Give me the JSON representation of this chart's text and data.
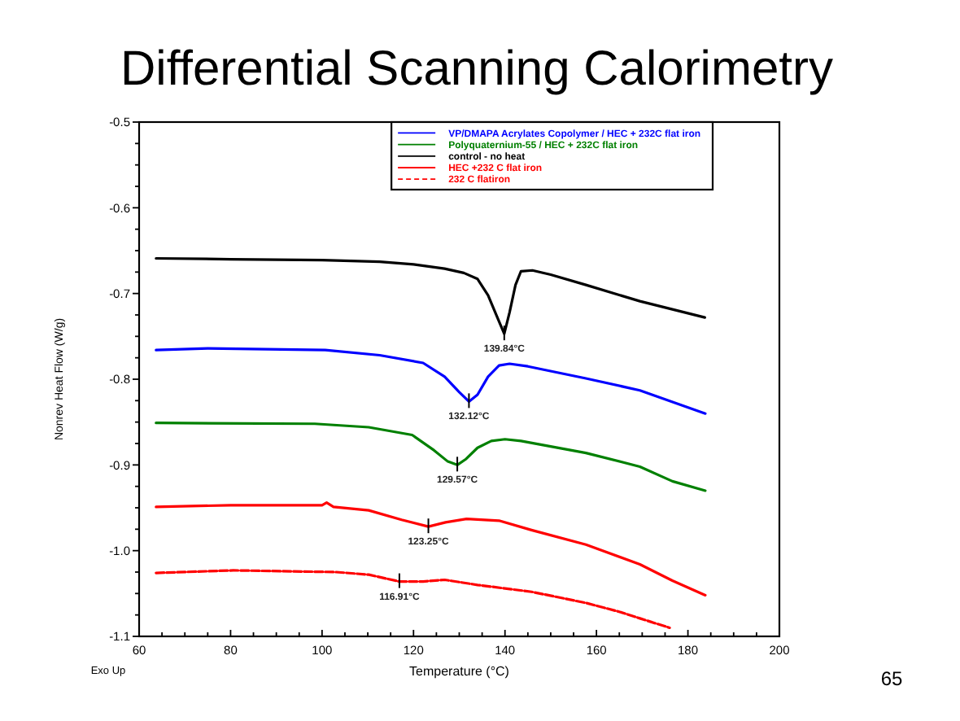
{
  "chart_data": {
    "type": "line",
    "title": "Differential Scanning Calorimetry",
    "xlabel": "Temperature (°C)",
    "ylabel": "Nonrev Heat Flow (W/g)",
    "xlim": [
      60,
      200
    ],
    "ylim": [
      -1.1,
      -0.5
    ],
    "xticks": [
      60,
      {
        "value": 65,
        "label": null
      },
      {
        "value": 70,
        "label": null
      },
      {
        "value": 75,
        "label": null
      },
      80,
      {
        "value": 85,
        "label": null
      },
      {
        "value": 90,
        "label": null
      },
      {
        "value": 95,
        "label": null
      },
      100,
      {
        "value": 105,
        "label": null
      },
      {
        "value": 110,
        "label": null
      },
      {
        "value": 115,
        "label": null
      },
      120,
      {
        "value": 125,
        "label": null
      },
      {
        "value": 130,
        "label": null
      },
      {
        "value": 135,
        "label": null
      },
      140,
      {
        "value": 145,
        "label": null
      },
      {
        "value": 150,
        "label": null
      },
      {
        "value": 155,
        "label": null
      },
      160,
      {
        "value": 165,
        "label": null
      },
      {
        "value": 170,
        "label": null
      },
      {
        "value": 175,
        "label": null
      },
      180,
      {
        "value": 185,
        "label": null
      },
      {
        "value": 190,
        "label": null
      },
      {
        "value": 195,
        "label": null
      },
      200
    ],
    "yticks": [
      -1.1,
      {
        "value": -1.075,
        "label": null
      },
      {
        "value": -1.05,
        "label": null
      },
      {
        "value": -1.025,
        "label": null
      },
      {
        "value": -1,
        "label": "-1.0"
      },
      {
        "value": -0.975,
        "label": null
      },
      {
        "value": -0.95,
        "label": null
      },
      {
        "value": -0.925,
        "label": null
      },
      -0.9,
      {
        "value": -0.875,
        "label": null
      },
      {
        "value": -0.85,
        "label": null
      },
      {
        "value": -0.825,
        "label": null
      },
      -0.8,
      {
        "value": -0.775,
        "label": null
      },
      {
        "value": -0.75,
        "label": null
      },
      {
        "value": -0.725,
        "label": null
      },
      -0.7,
      {
        "value": -0.675,
        "label": null
      },
      {
        "value": -0.65,
        "label": null
      },
      {
        "value": -0.625,
        "label": null
      },
      -0.6,
      {
        "value": -0.575,
        "label": null
      },
      {
        "value": -0.55,
        "label": null
      },
      {
        "value": -0.525,
        "label": null
      },
      -0.5
    ],
    "legend": "top right",
    "series": [
      {
        "name": "VP/DMAPA Acrylates Copolymer / HEC + 232C flat iron",
        "color": "#0000ff",
        "x": [
          63.7,
          75,
          100.7,
          112.6,
          122.1,
          126.8,
          130,
          132.12,
          134,
          136.3,
          138.7,
          141,
          145,
          157.7,
          169.5,
          183.8
        ],
        "values": [
          -0.766,
          -0.764,
          -0.766,
          -0.772,
          -0.781,
          -0.797,
          -0.815,
          -0.826,
          -0.818,
          -0.797,
          -0.784,
          -0.782,
          -0.785,
          -0.799,
          -0.813,
          -0.84
        ]
      },
      {
        "name": "Polyquaternium-55 / HEC + 232C flat iron",
        "color": "#008000",
        "x": [
          63.7,
          98.4,
          110.2,
          119.7,
          124.5,
          127.5,
          129.57,
          131.5,
          134,
          137,
          140,
          143.5,
          157.7,
          169.5,
          176.6,
          183.8
        ],
        "values": [
          -0.851,
          -0.852,
          -0.856,
          -0.865,
          -0.883,
          -0.896,
          -0.9,
          -0.893,
          -0.88,
          -0.872,
          -0.87,
          -0.872,
          -0.886,
          -0.902,
          -0.919,
          -0.93
        ]
      },
      {
        "name": "control - no heat",
        "color": "#000000",
        "x": [
          63.7,
          80,
          100,
          112.6,
          120,
          126.8,
          131,
          134,
          136.3,
          138.5,
          139.84,
          141,
          142.3,
          143.5,
          146,
          150,
          157.7,
          169.5,
          183.7
        ],
        "values": [
          -0.659,
          -0.66,
          -0.661,
          -0.663,
          -0.666,
          -0.671,
          -0.676,
          -0.683,
          -0.702,
          -0.73,
          -0.747,
          -0.722,
          -0.69,
          -0.674,
          -0.673,
          -0.678,
          -0.69,
          -0.709,
          -0.728
        ]
      },
      {
        "name": "HEC +232 C flat iron",
        "color": "#ff0000",
        "x": [
          63.7,
          80,
          100,
          101,
          102.5,
          110.2,
          117.4,
          123.25,
          127,
          131.6,
          138.7,
          145.8,
          157.7,
          169.5,
          176.6,
          183.8
        ],
        "values": [
          -0.949,
          -0.947,
          -0.947,
          -0.944,
          -0.949,
          -0.953,
          -0.964,
          -0.972,
          -0.967,
          -0.963,
          -0.965,
          -0.976,
          -0.993,
          -1.016,
          -1.035,
          -1.052
        ]
      },
      {
        "name": "232 C flatiron",
        "color": "#ff0000",
        "line_style": "dashed",
        "x": [
          63.7,
          80.6,
          103.1,
          110.2,
          116.91,
          122.1,
          126.8,
          134,
          145.8,
          157.7,
          164.8,
          169.5,
          176
        ],
        "values": [
          -1.026,
          -1.023,
          -1.025,
          -1.028,
          -1.036,
          -1.036,
          -1.034,
          -1.04,
          -1.048,
          -1.061,
          -1.071,
          -1.079,
          -1.09
        ]
      }
    ],
    "annotations": [
      {
        "text": "139.84°C",
        "x": 139.84,
        "y": -0.747
      },
      {
        "text": "132.12°C",
        "x": 132.12,
        "y": -0.826
      },
      {
        "text": "129.57°C",
        "x": 129.57,
        "y": -0.9
      },
      {
        "text": "123.25°C",
        "x": 123.25,
        "y": -0.972
      },
      {
        "text": "116.91°C",
        "x": 116.91,
        "y": -1.036
      },
      "Exo Up",
      "65"
    ]
  }
}
